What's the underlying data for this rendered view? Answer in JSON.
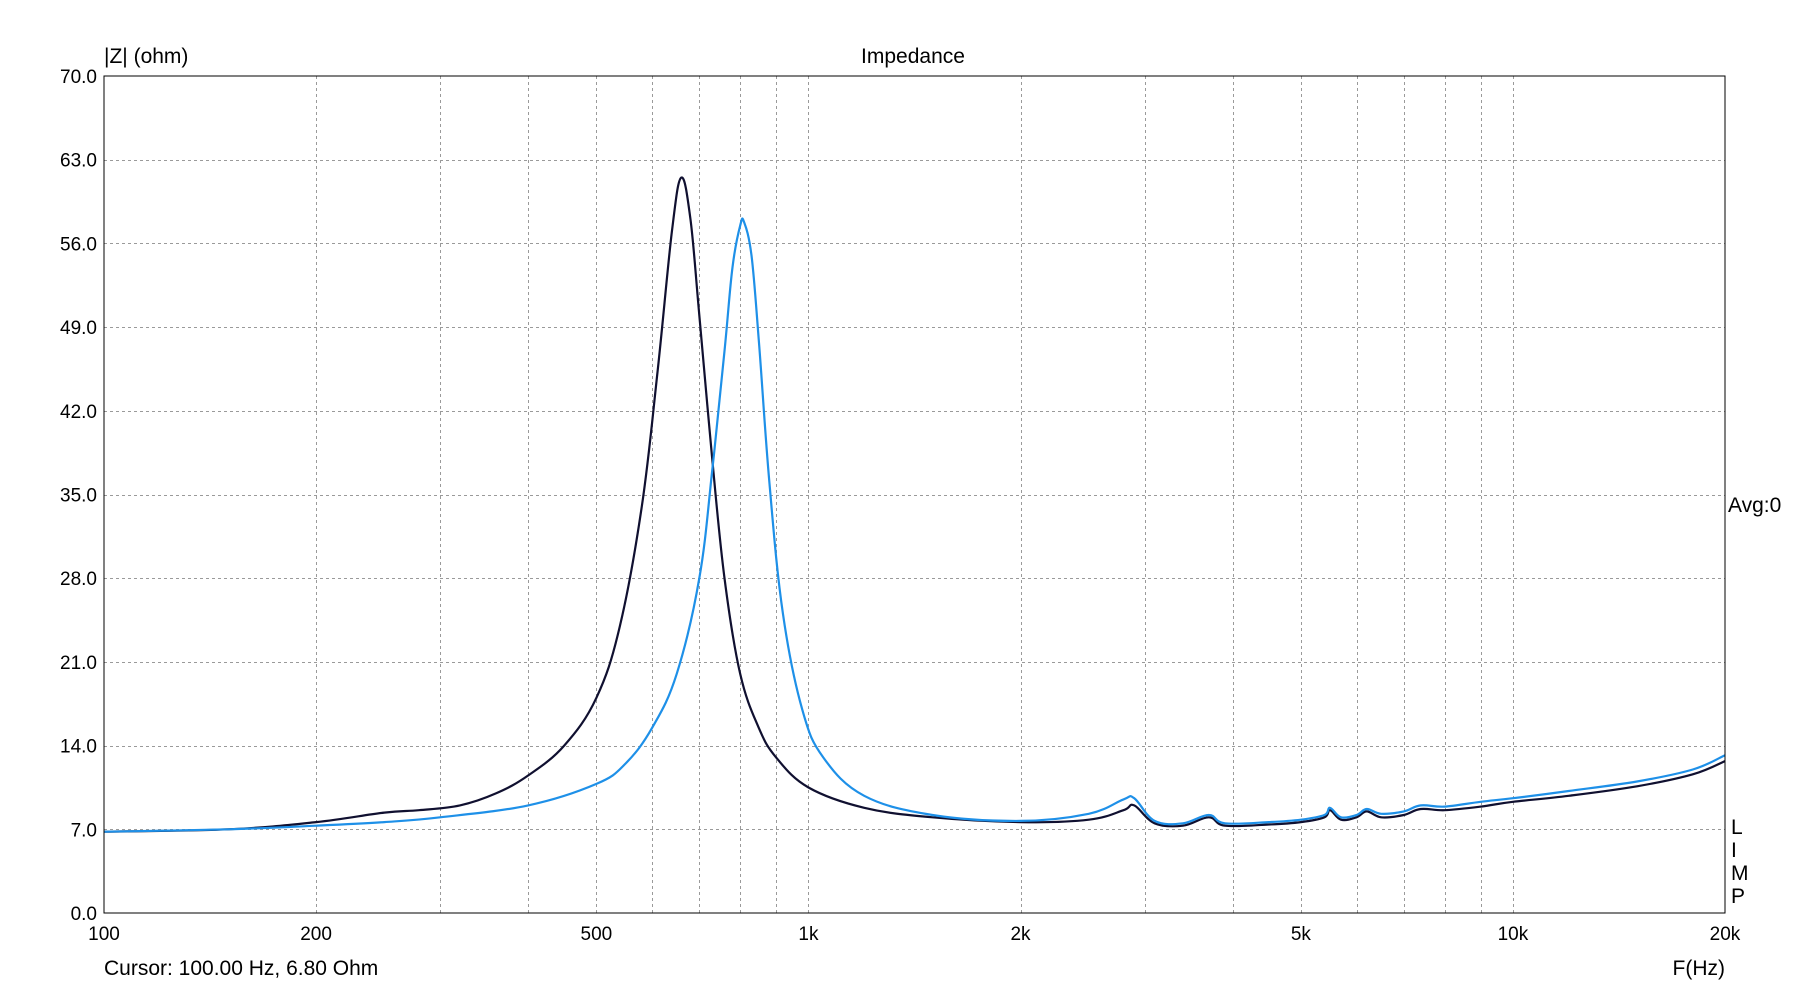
{
  "chart_data": {
    "type": "line",
    "title": "Impedance",
    "ylabel": "|Z| (ohm)",
    "xlabel": "F(Hz)",
    "x_scale": "log",
    "xlim": [
      100,
      20000
    ],
    "ylim": [
      0,
      70
    ],
    "grid": true,
    "x_ticks": [
      {
        "value": 100,
        "label": "100"
      },
      {
        "value": 200,
        "label": "200"
      },
      {
        "value": 500,
        "label": "500"
      },
      {
        "value": 1000,
        "label": "1k"
      },
      {
        "value": 2000,
        "label": "2k"
      },
      {
        "value": 5000,
        "label": "5k"
      },
      {
        "value": 10000,
        "label": "10k"
      },
      {
        "value": 20000,
        "label": "20k"
      }
    ],
    "y_ticks": [
      {
        "value": 0,
        "label": "0.0"
      },
      {
        "value": 7,
        "label": "7.0"
      },
      {
        "value": 14,
        "label": "14.0"
      },
      {
        "value": 21,
        "label": "21.0"
      },
      {
        "value": 28,
        "label": "28.0"
      },
      {
        "value": 35,
        "label": "35.0"
      },
      {
        "value": 42,
        "label": "42.0"
      },
      {
        "value": 49,
        "label": "49.0"
      },
      {
        "value": 56,
        "label": "56.0"
      },
      {
        "value": 63,
        "label": "63.0"
      },
      {
        "value": 70,
        "label": "70.0"
      }
    ],
    "series": [
      {
        "color": "#101030",
        "x": [
          100,
          150,
          200,
          250,
          280,
          320,
          360,
          400,
          450,
          500,
          540,
          580,
          610,
          640,
          660,
          680,
          700,
          730,
          760,
          800,
          850,
          900,
          1000,
          1200,
          1500,
          2000,
          2500,
          2800,
          2900,
          3100,
          3400,
          3700,
          3900,
          4500,
          5000,
          5400,
          5500,
          5700,
          6000,
          6200,
          6500,
          7000,
          7400,
          8000,
          9000,
          10000,
          12000,
          15000,
          18000,
          20000
        ],
        "y": [
          6.8,
          7.0,
          7.6,
          8.4,
          8.6,
          9.0,
          10.0,
          11.5,
          14.0,
          18.0,
          24.0,
          34.0,
          45.0,
          57.0,
          61.5,
          58.0,
          50.0,
          38.0,
          28.0,
          20.0,
          15.5,
          13.0,
          10.5,
          8.8,
          8.0,
          7.6,
          7.8,
          8.6,
          9.0,
          7.5,
          7.3,
          8.0,
          7.3,
          7.4,
          7.6,
          8.0,
          8.6,
          7.8,
          8.0,
          8.5,
          8.0,
          8.2,
          8.7,
          8.6,
          8.9,
          9.3,
          9.8,
          10.6,
          11.6,
          12.7
        ]
      },
      {
        "color": "#1e90e8",
        "x": [
          100,
          150,
          200,
          250,
          300,
          400,
          500,
          550,
          600,
          650,
          700,
          730,
          760,
          780,
          800,
          810,
          830,
          850,
          880,
          920,
          980,
          1050,
          1200,
          1500,
          2000,
          2500,
          2800,
          2900,
          3100,
          3400,
          3700,
          3900,
          4500,
          5000,
          5400,
          5500,
          5700,
          6000,
          6200,
          6500,
          7000,
          7400,
          8000,
          9000,
          10000,
          12000,
          15000,
          18000,
          20000
        ],
        "y": [
          6.8,
          7.0,
          7.3,
          7.6,
          8.0,
          9.0,
          10.8,
          12.5,
          15.5,
          20.0,
          28.0,
          37.0,
          47.0,
          54.0,
          57.5,
          57.8,
          55.0,
          48.0,
          36.0,
          25.0,
          17.0,
          13.0,
          9.8,
          8.2,
          7.7,
          8.3,
          9.5,
          9.6,
          7.7,
          7.5,
          8.2,
          7.5,
          7.6,
          7.8,
          8.2,
          8.8,
          8.0,
          8.2,
          8.7,
          8.3,
          8.5,
          9.0,
          8.9,
          9.3,
          9.6,
          10.2,
          11.0,
          12.0,
          13.2
        ]
      }
    ]
  },
  "side_labels": {
    "avg": "Avg:0",
    "limp": [
      "L",
      "I",
      "M",
      "P"
    ]
  },
  "cursor_readout": "Cursor: 100.00 Hz, 6.80 Ohm"
}
